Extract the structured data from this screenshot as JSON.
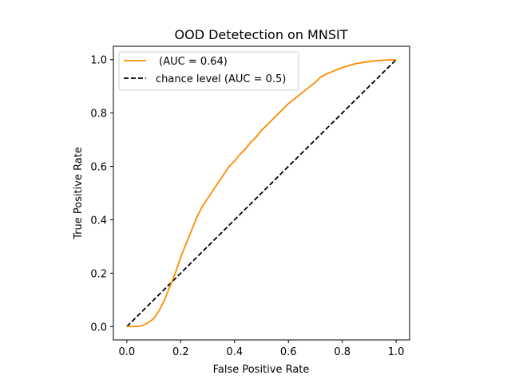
{
  "chart_data": {
    "type": "line",
    "title": "OOD Detetection on MNSIT",
    "xlabel": "False Positive Rate",
    "ylabel": "True Positive Rate",
    "xlim": [
      -0.05,
      1.05
    ],
    "ylim": [
      -0.05,
      1.05
    ],
    "xticks": [
      "0.0",
      "0.2",
      "0.4",
      "0.6",
      "0.8",
      "1.0"
    ],
    "yticks": [
      "0.0",
      "0.2",
      "0.4",
      "0.6",
      "0.8",
      "1.0"
    ],
    "grid": false,
    "legend_position": "top-left",
    "series": [
      {
        "name": " (AUC = 0.64)",
        "color": "#ff8c00",
        "style": "solid",
        "x": [
          0.0,
          0.02,
          0.04,
          0.06,
          0.08,
          0.1,
          0.12,
          0.14,
          0.16,
          0.18,
          0.2,
          0.22,
          0.24,
          0.26,
          0.28,
          0.3,
          0.32,
          0.34,
          0.36,
          0.38,
          0.4,
          0.42,
          0.44,
          0.46,
          0.48,
          0.5,
          0.52,
          0.54,
          0.56,
          0.58,
          0.6,
          0.65,
          0.7,
          0.72,
          0.75,
          0.8,
          0.85,
          0.9,
          0.95,
          1.0
        ],
        "y": [
          0.0,
          0.0,
          0.0,
          0.005,
          0.015,
          0.03,
          0.06,
          0.1,
          0.15,
          0.2,
          0.26,
          0.31,
          0.36,
          0.41,
          0.45,
          0.48,
          0.51,
          0.54,
          0.57,
          0.6,
          0.62,
          0.645,
          0.665,
          0.69,
          0.71,
          0.735,
          0.755,
          0.775,
          0.795,
          0.815,
          0.835,
          0.875,
          0.915,
          0.935,
          0.95,
          0.97,
          0.985,
          0.993,
          0.998,
          1.0
        ]
      },
      {
        "name": "chance level (AUC = 0.5)",
        "color": "#000000",
        "style": "dashed",
        "x": [
          0.0,
          1.0
        ],
        "y": [
          0.0,
          1.0
        ]
      }
    ]
  }
}
